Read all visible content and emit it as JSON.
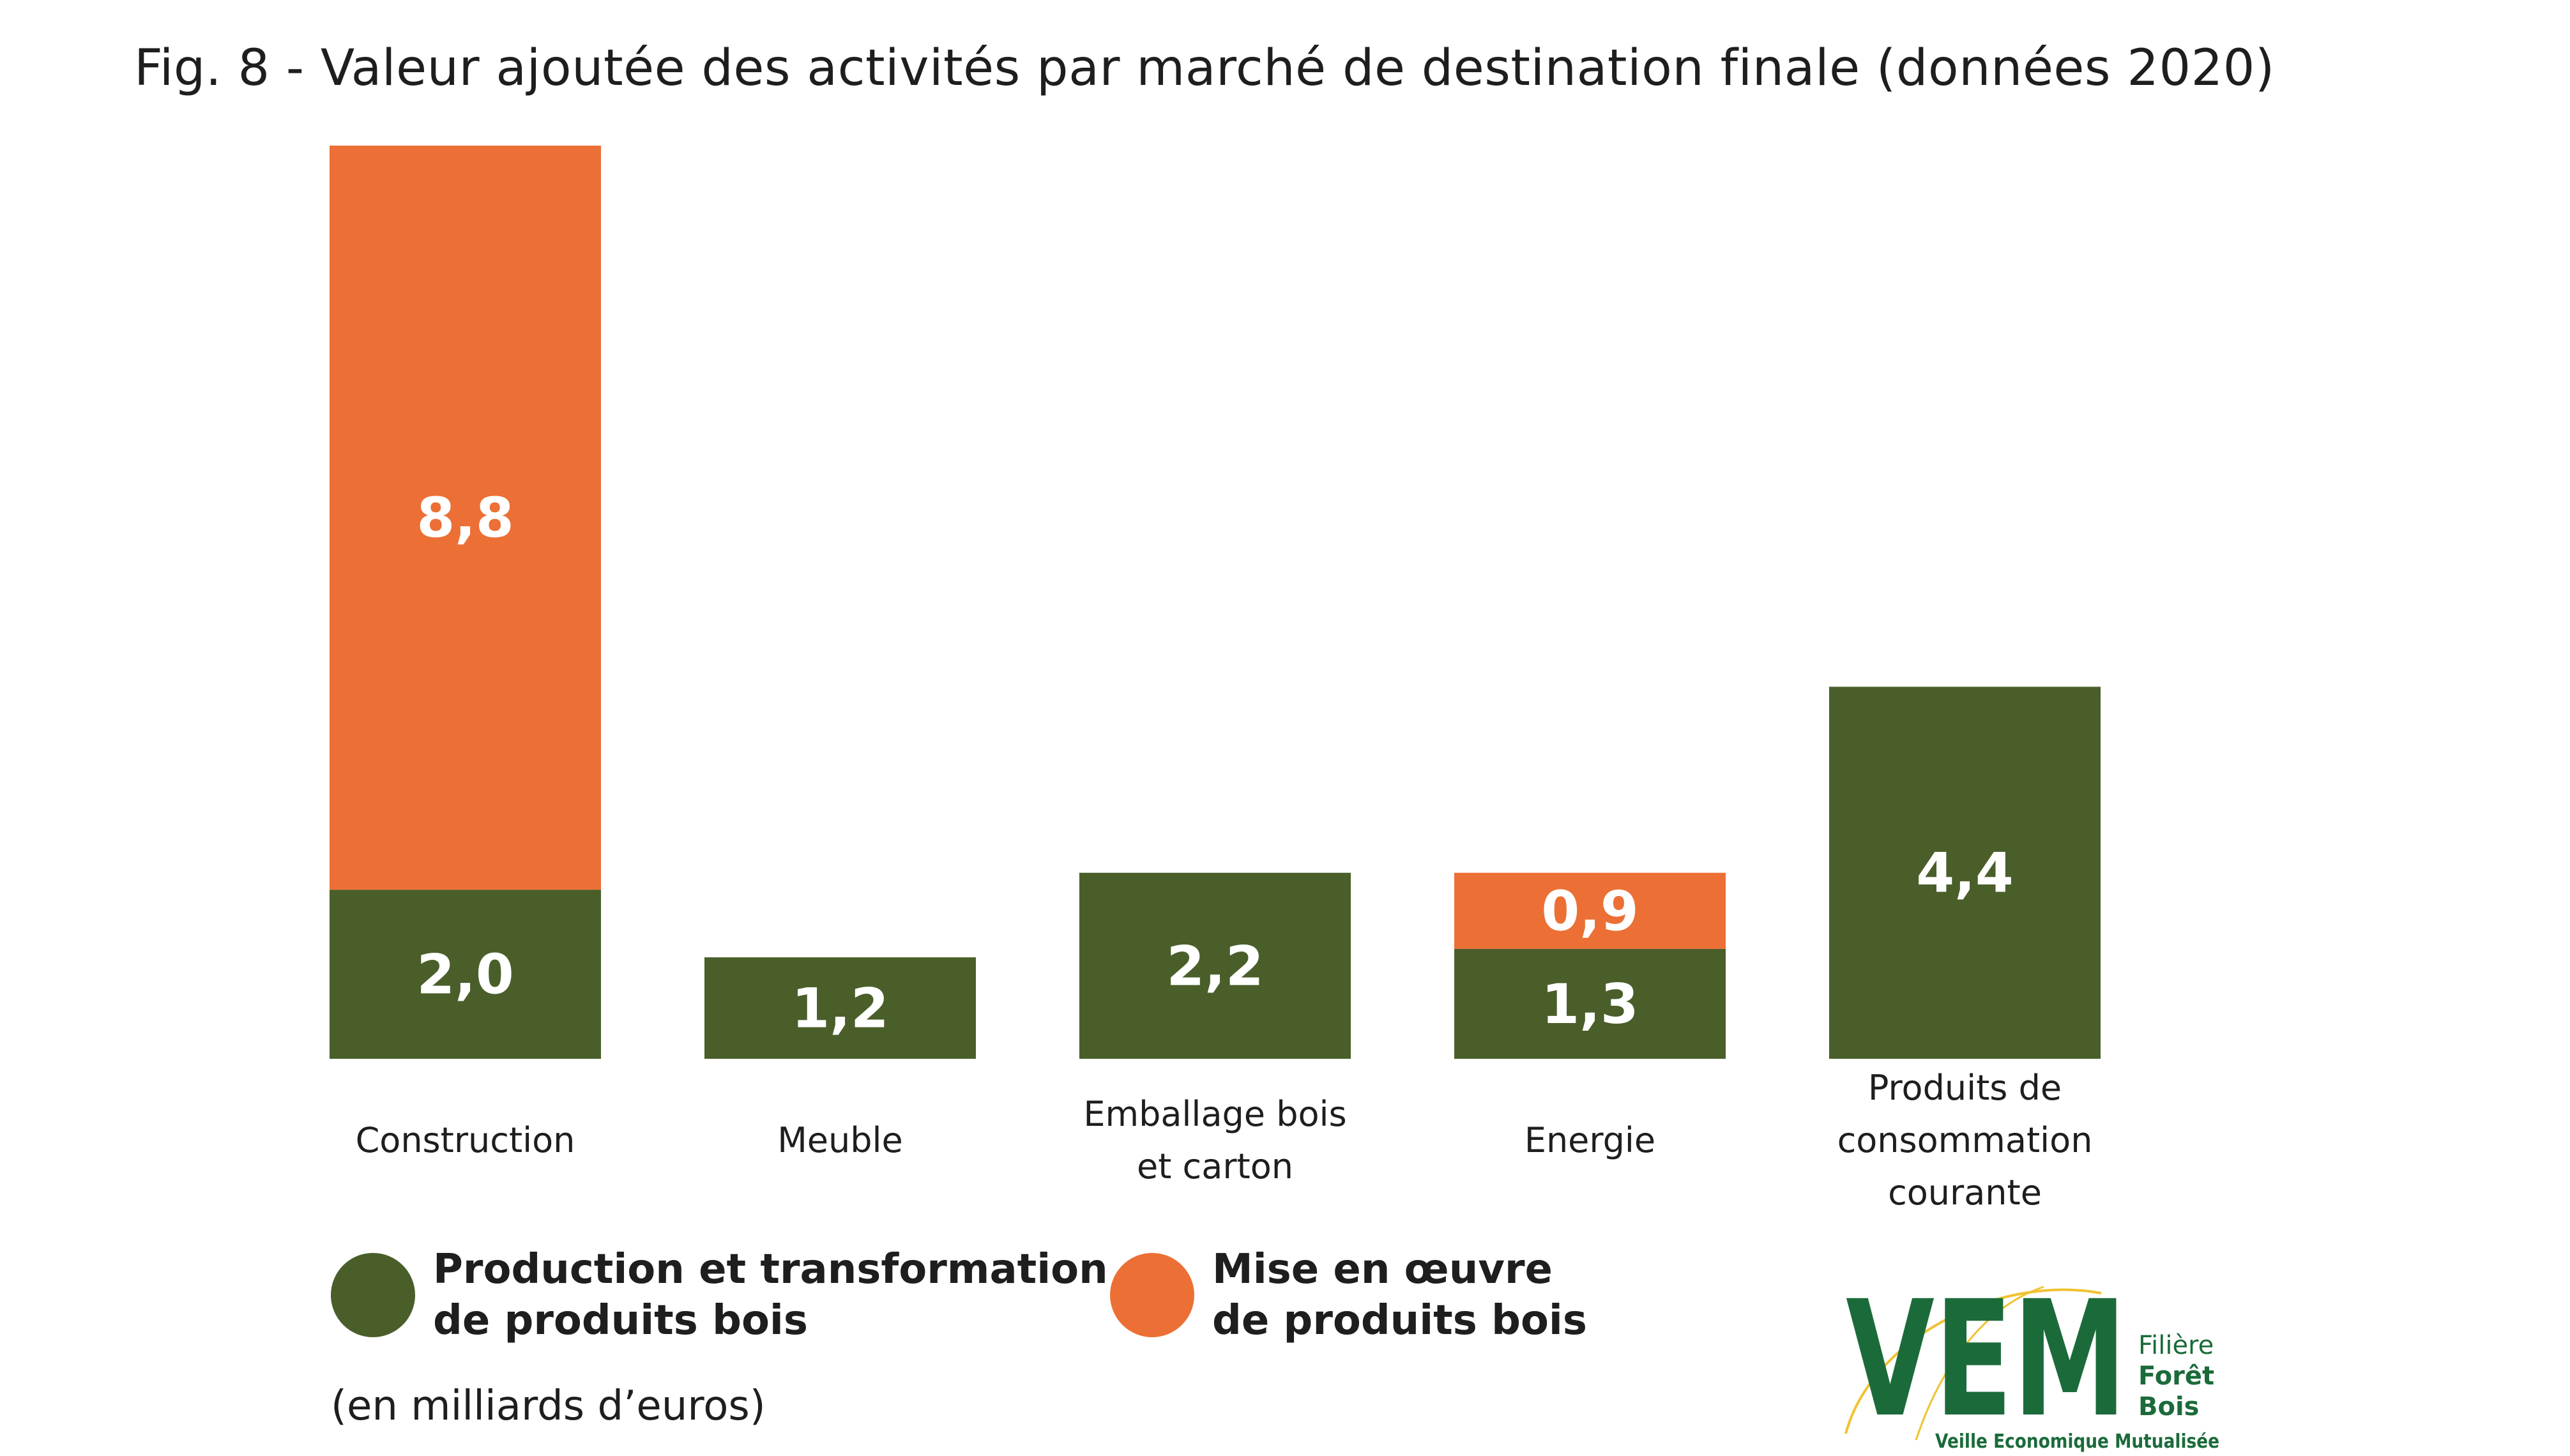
{
  "title": "Fig. 8 - Valeur ajoutée des activités par marché de destination finale (données 2020)",
  "unit_note": "(en milliards d’euros)",
  "colors": {
    "production": "#4a5e2a",
    "mise_en_oeuvre": "#ec7035",
    "logo_green": "#1b6b3a",
    "logo_yellow": "#f1c232"
  },
  "legend": [
    {
      "line1": "Production et transformation",
      "line2": "de produits bois",
      "color": "#4a5e2a"
    },
    {
      "line1": "Mise en œuvre",
      "line2": "de produits bois",
      "color": "#ec7035"
    }
  ],
  "chart_data": {
    "type": "bar",
    "stacked": true,
    "categories": [
      "Construction",
      "Meuble",
      "Emballage bois et carton",
      "Energie",
      "Produits de consommation courante"
    ],
    "category_lines": [
      [
        "Construction"
      ],
      [
        "Meuble"
      ],
      [
        "Emballage bois",
        "et carton"
      ],
      [
        "Energie"
      ],
      [
        "Produits de",
        "consommation",
        "courante"
      ]
    ],
    "series": [
      {
        "name": "Production et transformation de produits bois",
        "values": [
          2.0,
          1.2,
          2.2,
          1.3,
          4.4
        ],
        "labels": [
          "2,0",
          "1,2",
          "2,2",
          "1,3",
          "4,4"
        ]
      },
      {
        "name": "Mise en œuvre de produits bois",
        "values": [
          8.8,
          null,
          null,
          0.9,
          null
        ],
        "labels": [
          "8,8",
          "",
          "",
          "0,9",
          ""
        ]
      }
    ],
    "ylim": [
      0,
      10.8
    ],
    "grid": false,
    "legend_position": "bottom-left"
  },
  "logo": {
    "mark": "VEM",
    "line1": "Filière",
    "line2": "Forêt",
    "line3": "Bois",
    "tagline": "Veille Economique Mutualisée"
  }
}
